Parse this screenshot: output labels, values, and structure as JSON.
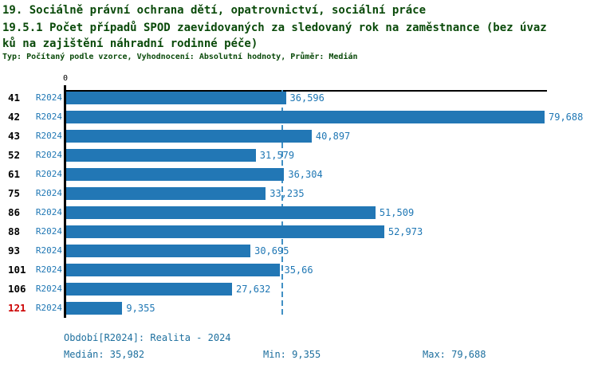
{
  "header": {
    "title_line1": "19. Sociálně právní ochrana dětí, opatrovnictví, sociální práce",
    "title_line2": "19.5.1 Počet případů SPOD zaevidovaných za sledovaný rok na zaměstnance (bez úvazků na zajištění náhradní rodinné péče)",
    "meta_line": "Typ: Počítaný podle vzorce, Vyhodnocení: Absolutní hodnoty, Průměr: Medián"
  },
  "chart_data": {
    "type": "bar",
    "orientation": "horizontal",
    "title": "19.5.1 Počet případů SPOD zaevidovaných za sledovaný rok na zaměstnance (bez úvazků na zajištění náhradní rodinné péče)",
    "series_label": "R2024",
    "categories": [
      "41",
      "42",
      "43",
      "52",
      "61",
      "75",
      "86",
      "88",
      "93",
      "101",
      "106",
      "121"
    ],
    "values": [
      36.596,
      79.688,
      40.897,
      31.579,
      36.304,
      33.235,
      51.509,
      52.973,
      30.695,
      35.66,
      27.632,
      9.355
    ],
    "value_labels": [
      "36,596",
      "79,688",
      "40,897",
      "31,579",
      "36,304",
      "33,235",
      "51,509",
      "52,973",
      "30,695",
      "35,66",
      "27,632",
      "9,355"
    ],
    "highlighted_category": "121",
    "median": 35.982,
    "min": 9.355,
    "max": 79.688,
    "origin_tick_label": "0",
    "xlim": [
      0,
      80
    ],
    "grid": false,
    "legend_position": "none",
    "colors": {
      "bar": "#2277b5",
      "median_line": "#4190c4",
      "axis": "#000000",
      "category_label": "#000000",
      "highlighted_category_label": "#cc0000",
      "series_label": "#1f77b4",
      "value_label": "#1f77b4",
      "title": "#0a4a0a",
      "footer": "#1d6f9e"
    }
  },
  "footer": {
    "period_line": "Období[R2024]: Realita - 2024",
    "median_label": "Medián: 35,982",
    "min_label": "Min: 9,355",
    "max_label": "Max: 79,688"
  }
}
